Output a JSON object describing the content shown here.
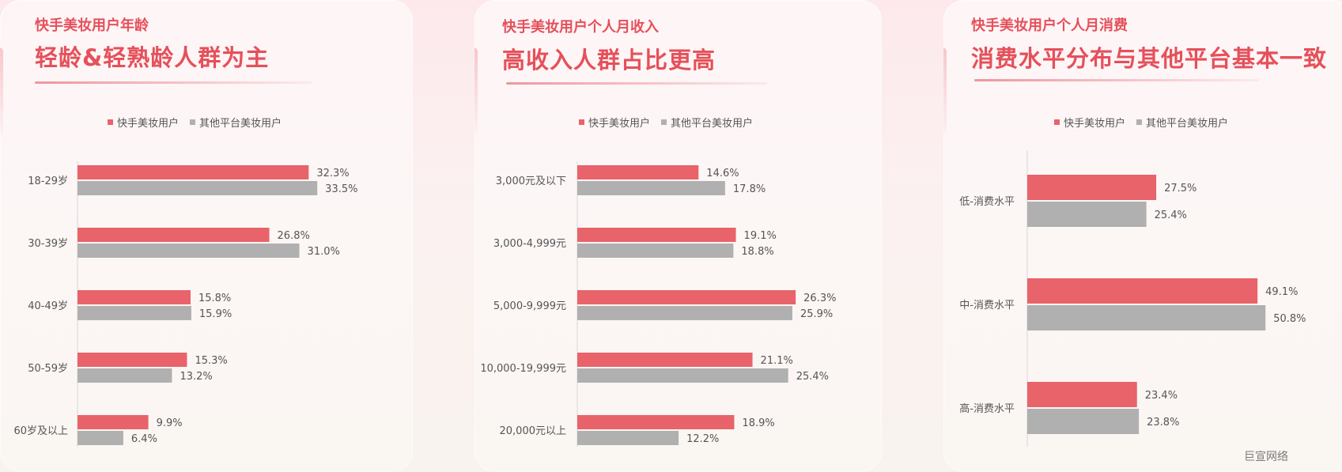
{
  "colors": {
    "kuaishou": "#e8636a",
    "other": "#b0b0b0",
    "title": "#e5505a"
  },
  "legend": {
    "series_a": "快手美妆用户",
    "series_b": "其他平台美妆用户"
  },
  "panels": [
    {
      "subtitle": "快手美妆用户年龄",
      "headline": "轻龄&轻熟龄人群为主"
    },
    {
      "subtitle": "快手美妆用户个人月收入",
      "headline": "高收入人群占比更高"
    },
    {
      "subtitle": "快手美妆用户个人月消费",
      "headline": "消费水平分布与其他平台基本一致"
    }
  ],
  "watermark": "巨宣网络",
  "chart_data": [
    {
      "type": "bar",
      "orientation": "horizontal",
      "categories": [
        "18-29岁",
        "30-39岁",
        "40-49岁",
        "50-59岁",
        "60岁及以上"
      ],
      "series": [
        {
          "name": "快手美妆用户",
          "values": [
            32.3,
            26.8,
            15.8,
            15.3,
            9.9
          ],
          "labels": [
            "32.3%",
            "26.8%",
            "15.8%",
            "15.3%",
            "9.9%"
          ]
        },
        {
          "name": "其他平台美妆用户",
          "values": [
            33.5,
            31.0,
            15.9,
            13.2,
            6.4
          ],
          "labels": [
            "33.5%",
            "31.0%",
            "15.9%",
            "13.2%",
            "6.4%"
          ]
        }
      ],
      "legend_position": "top"
    },
    {
      "type": "bar",
      "orientation": "horizontal",
      "categories": [
        "3,000元及以下",
        "3,000-4,999元",
        "5,000-9,999元",
        "10,000-19,999元",
        "20,000元以上"
      ],
      "series": [
        {
          "name": "快手美妆用户",
          "values": [
            14.6,
            19.1,
            26.3,
            21.1,
            18.9
          ],
          "labels": [
            "14.6%",
            "19.1%",
            "26.3%",
            "21.1%",
            "18.9%"
          ]
        },
        {
          "name": "其他平台美妆用户",
          "values": [
            17.8,
            18.8,
            25.9,
            25.4,
            12.2
          ],
          "labels": [
            "17.8%",
            "18.8%",
            "25.9%",
            "25.4%",
            "12.2%"
          ]
        }
      ],
      "legend_position": "top"
    },
    {
      "type": "bar",
      "orientation": "horizontal",
      "categories": [
        "低-消费水平",
        "中-消费水平",
        "高-消费水平"
      ],
      "series": [
        {
          "name": "快手美妆用户",
          "values": [
            27.5,
            49.1,
            23.4
          ],
          "labels": [
            "27.5%",
            "49.1%",
            "23.4%"
          ]
        },
        {
          "name": "其他平台美妆用户",
          "values": [
            25.4,
            50.8,
            23.8
          ],
          "labels": [
            "25.4%",
            "50.8%",
            "23.8%"
          ]
        }
      ],
      "legend_position": "top"
    }
  ]
}
